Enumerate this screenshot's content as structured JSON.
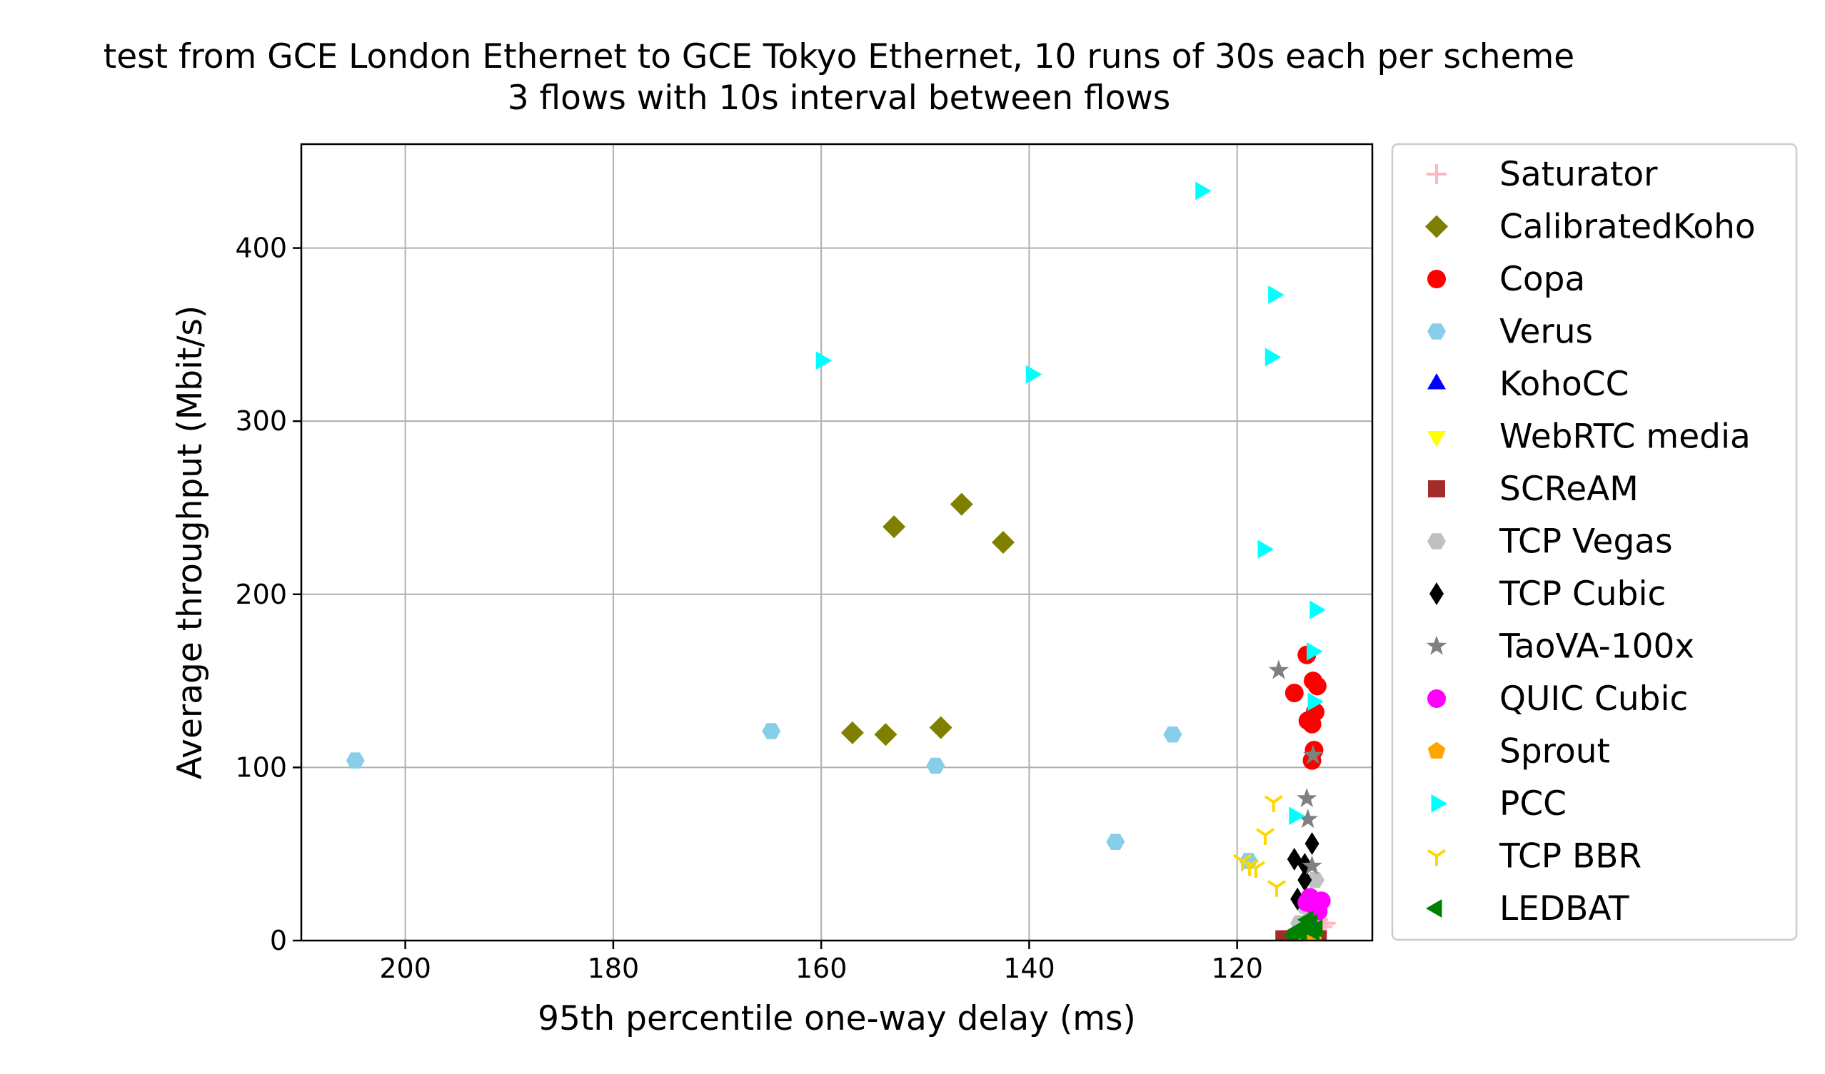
{
  "chart_data": {
    "type": "scatter",
    "title": "test from GCE London Ethernet to GCE Tokyo Ethernet, 10 runs of 30s each per scheme",
    "subtitle": "3 flows with 10s interval between flows",
    "xlabel": "95th percentile one-way delay (ms)",
    "ylabel": "Average throughput (Mbit/s)",
    "xlim": [
      210,
      107
    ],
    "ylim": [
      0,
      460
    ],
    "x_inverted": true,
    "grid": true,
    "legend_position": "outside-right",
    "x_ticks": [
      200,
      180,
      160,
      140,
      120
    ],
    "y_ticks": [
      0,
      100,
      200,
      300,
      400
    ],
    "series": [
      {
        "name": "Saturator",
        "marker": "plus",
        "color": "#ffb6c1",
        "points": [
          [
            112.5,
            5
          ],
          [
            111.8,
            8
          ],
          [
            112.2,
            12
          ],
          [
            113.0,
            3
          ],
          [
            111.5,
            10
          ]
        ]
      },
      {
        "name": "CalibratedKoho",
        "marker": "diamond",
        "color": "#808000",
        "points": [
          [
            153.0,
            239
          ],
          [
            146.5,
            252
          ],
          [
            142.5,
            230
          ],
          [
            157.0,
            120
          ],
          [
            153.8,
            119
          ],
          [
            148.5,
            123
          ]
        ]
      },
      {
        "name": "Copa",
        "marker": "circle",
        "color": "#ff0000",
        "points": [
          [
            113.3,
            165
          ],
          [
            112.7,
            150
          ],
          [
            112.3,
            147
          ],
          [
            114.5,
            143
          ],
          [
            112.5,
            132
          ],
          [
            113.2,
            127
          ],
          [
            112.8,
            125
          ],
          [
            112.6,
            110
          ],
          [
            112.8,
            104
          ]
        ]
      },
      {
        "name": "Verus",
        "marker": "hexagon",
        "color": "#87ceeb",
        "points": [
          [
            204.8,
            104
          ],
          [
            164.8,
            121
          ],
          [
            149.0,
            101
          ],
          [
            126.2,
            119
          ],
          [
            131.7,
            57
          ],
          [
            118.9,
            46
          ]
        ]
      },
      {
        "name": "KohoCC",
        "marker": "triangle-up",
        "color": "#0000ff",
        "points": [
          [
            113.0,
            2
          ],
          [
            112.5,
            3
          ],
          [
            113.5,
            1
          ]
        ]
      },
      {
        "name": "WebRTC media",
        "marker": "triangle-down",
        "color": "#ffff00",
        "points": [
          [
            113.2,
            2
          ],
          [
            112.8,
            1
          ],
          [
            113.8,
            2
          ]
        ]
      },
      {
        "name": "SCReAM",
        "marker": "square",
        "color": "#a52a2a",
        "points": [
          [
            115.5,
            1
          ],
          [
            114.8,
            1
          ],
          [
            114.2,
            1
          ],
          [
            113.5,
            1
          ],
          [
            112.8,
            1
          ],
          [
            112.2,
            1
          ],
          [
            115.0,
            1
          ],
          [
            113.0,
            1
          ]
        ]
      },
      {
        "name": "TCP Vegas",
        "marker": "hexagon",
        "color": "#c0c0c0",
        "points": [
          [
            112.5,
            35
          ],
          [
            113.5,
            20
          ],
          [
            112.8,
            15
          ],
          [
            114.0,
            10
          ]
        ]
      },
      {
        "name": "TCP Cubic",
        "marker": "thin-diamond",
        "color": "#000000",
        "points": [
          [
            112.8,
            56
          ],
          [
            114.5,
            47
          ],
          [
            113.5,
            44
          ],
          [
            113.5,
            35
          ],
          [
            114.2,
            24
          ],
          [
            112.8,
            20
          ]
        ]
      },
      {
        "name": "TaoVA-100x",
        "marker": "star",
        "color": "#808080",
        "points": [
          [
            116.0,
            156
          ],
          [
            112.7,
            107
          ],
          [
            113.3,
            82
          ],
          [
            113.2,
            70
          ],
          [
            112.8,
            43
          ]
        ]
      },
      {
        "name": "QUIC Cubic",
        "marker": "circle",
        "color": "#ff00ff",
        "points": [
          [
            113.0,
            25
          ],
          [
            111.9,
            23
          ],
          [
            112.6,
            20
          ],
          [
            112.2,
            17
          ],
          [
            113.3,
            22
          ]
        ]
      },
      {
        "name": "Sprout",
        "marker": "pentagon",
        "color": "#ffa500",
        "points": [
          [
            113.0,
            3
          ],
          [
            113.8,
            2
          ],
          [
            112.6,
            2
          ]
        ]
      },
      {
        "name": "PCC",
        "marker": "triangle-right",
        "color": "#00ffff",
        "points": [
          [
            123.5,
            433
          ],
          [
            116.5,
            373
          ],
          [
            116.8,
            337
          ],
          [
            160.0,
            335
          ],
          [
            139.8,
            327
          ],
          [
            117.5,
            226
          ],
          [
            112.5,
            191
          ],
          [
            112.8,
            167
          ],
          [
            112.7,
            138
          ],
          [
            114.5,
            72
          ]
        ]
      },
      {
        "name": "TCP BBR",
        "marker": "tri-down",
        "color": "#ffd700",
        "points": [
          [
            116.5,
            80
          ],
          [
            117.3,
            61
          ],
          [
            119.5,
            46
          ],
          [
            118.8,
            43
          ],
          [
            118.2,
            42
          ],
          [
            116.2,
            31
          ]
        ]
      },
      {
        "name": "LEDBAT",
        "marker": "triangle-left",
        "color": "#008000",
        "points": [
          [
            114.2,
            6
          ],
          [
            113.5,
            8
          ],
          [
            112.8,
            10
          ],
          [
            113.8,
            4
          ],
          [
            112.3,
            7
          ],
          [
            113.2,
            12
          ],
          [
            114.6,
            3
          ],
          [
            112.6,
            5
          ]
        ]
      }
    ]
  }
}
